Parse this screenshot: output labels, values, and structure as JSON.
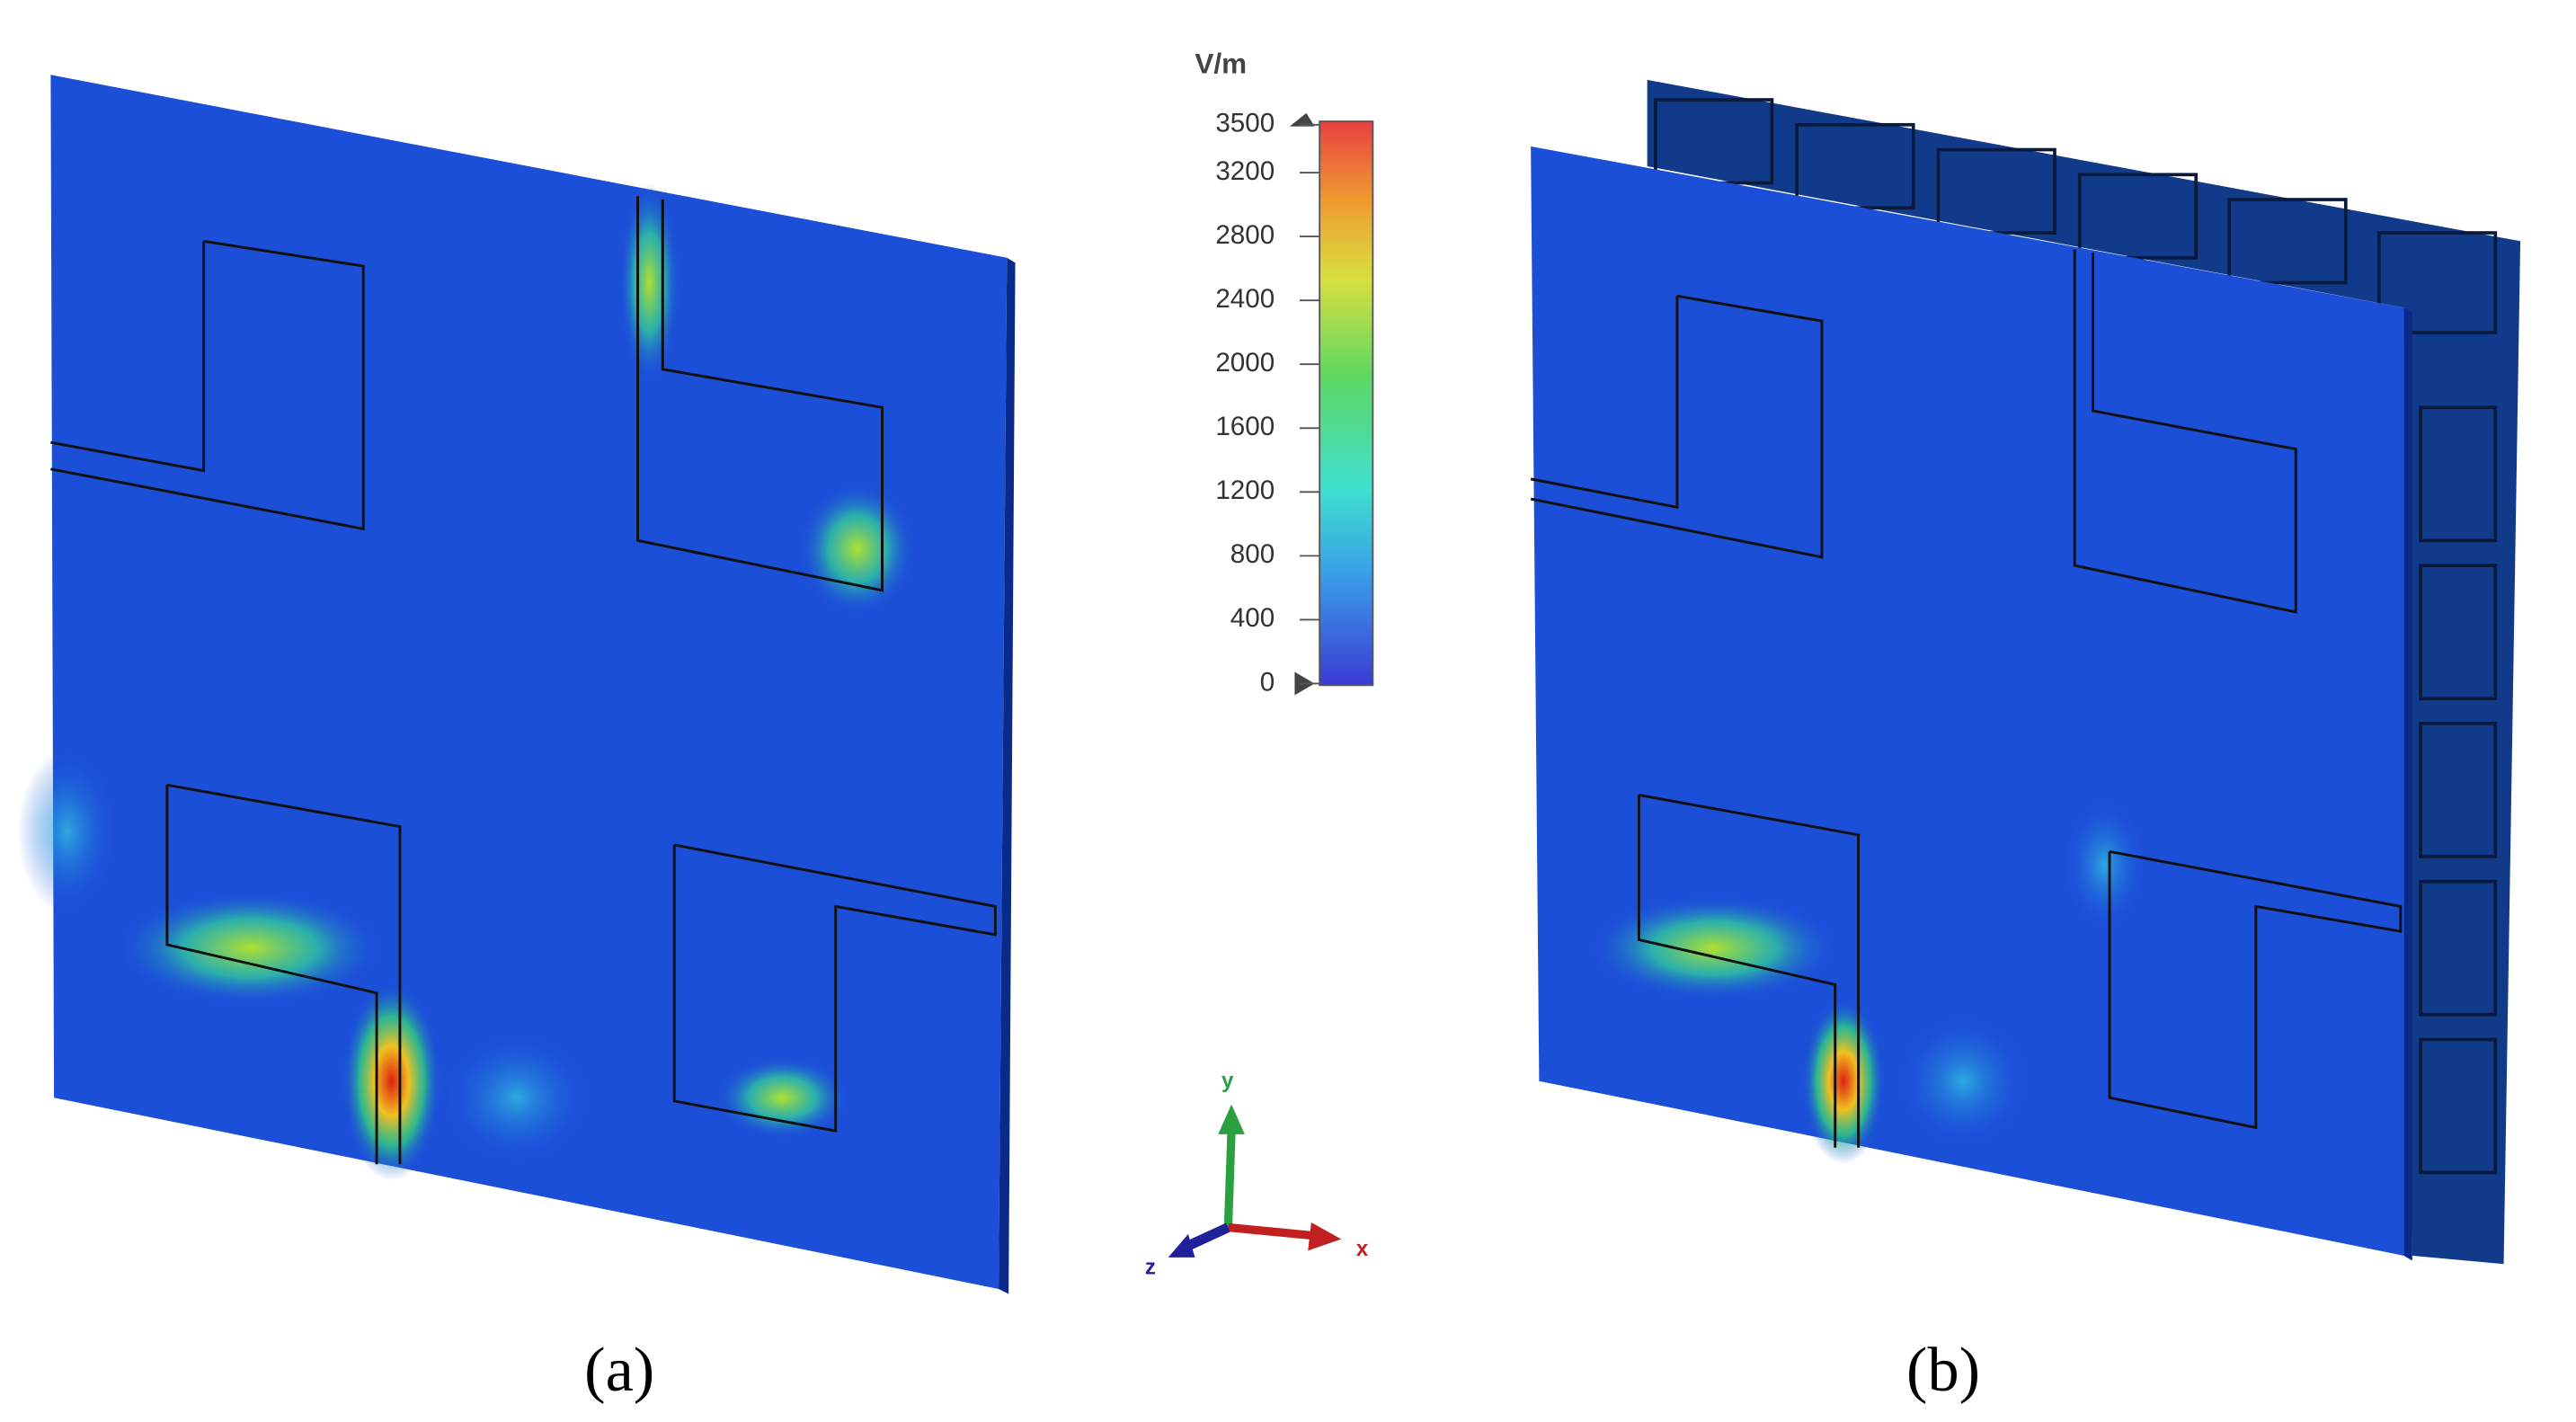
{
  "colorbar": {
    "unit": "V/m",
    "range": [
      0,
      3500
    ],
    "ticks": [
      0,
      400,
      800,
      1200,
      1600,
      2000,
      2400,
      2800,
      3200,
      3500
    ]
  },
  "axes": {
    "y": "y",
    "x": "x",
    "z": "z"
  },
  "panels": [
    {
      "caption": "(a)"
    },
    {
      "caption": "(b)"
    }
  ]
}
